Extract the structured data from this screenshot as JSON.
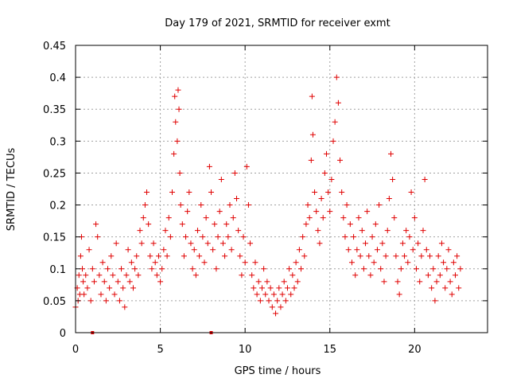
{
  "chart_data": {
    "type": "scatter",
    "title": "Day 179 of 2021, SRMTID for receiver exmt",
    "xlabel": "GPS time / hours",
    "ylabel": "SRMTID / TECUs",
    "xlim": [
      0,
      24.3
    ],
    "ylim": [
      0,
      0.45
    ],
    "xticks": [
      0,
      5,
      10,
      15,
      20
    ],
    "xtick_labels": [
      "0",
      "5",
      "10",
      "15",
      "20"
    ],
    "yticks": [
      0,
      0.05,
      0.1,
      0.15,
      0.2,
      0.25,
      0.3,
      0.35,
      0.4,
      0.45
    ],
    "ytick_labels": [
      "0",
      "0.05",
      "0.1",
      "0.15",
      "0.2",
      "0.25",
      "0.3",
      "0.35",
      "0.4",
      "0.45"
    ],
    "grid": true,
    "marker": "plus",
    "color": "#e00000",
    "gap_markers": [
      {
        "x": 1.0,
        "y": 0
      },
      {
        "x": 8.0,
        "y": 0
      }
    ],
    "series": [
      {
        "name": "SRMTID",
        "points": [
          [
            0.0,
            0.04
          ],
          [
            0.1,
            0.07
          ],
          [
            0.15,
            0.05
          ],
          [
            0.2,
            0.09
          ],
          [
            0.25,
            0.06
          ],
          [
            0.3,
            0.12
          ],
          [
            0.35,
            0.15
          ],
          [
            0.4,
            0.1
          ],
          [
            0.45,
            0.08
          ],
          [
            0.5,
            0.06
          ],
          [
            0.6,
            0.09
          ],
          [
            0.7,
            0.07
          ],
          [
            0.8,
            0.13
          ],
          [
            0.9,
            0.05
          ],
          [
            1.0,
            0.1
          ],
          [
            1.1,
            0.08
          ],
          [
            1.2,
            0.17
          ],
          [
            1.3,
            0.15
          ],
          [
            1.4,
            0.09
          ],
          [
            1.5,
            0.06
          ],
          [
            1.6,
            0.11
          ],
          [
            1.7,
            0.08
          ],
          [
            1.8,
            0.05
          ],
          [
            1.9,
            0.1
          ],
          [
            2.0,
            0.07
          ],
          [
            2.1,
            0.12
          ],
          [
            2.2,
            0.09
          ],
          [
            2.3,
            0.06
          ],
          [
            2.4,
            0.14
          ],
          [
            2.5,
            0.08
          ],
          [
            2.6,
            0.05
          ],
          [
            2.7,
            0.1
          ],
          [
            2.8,
            0.07
          ],
          [
            2.9,
            0.04
          ],
          [
            3.0,
            0.09
          ],
          [
            3.1,
            0.13
          ],
          [
            3.2,
            0.08
          ],
          [
            3.3,
            0.11
          ],
          [
            3.4,
            0.07
          ],
          [
            3.5,
            0.1
          ],
          [
            3.6,
            0.12
          ],
          [
            3.7,
            0.09
          ],
          [
            3.8,
            0.16
          ],
          [
            3.9,
            0.14
          ],
          [
            4.0,
            0.18
          ],
          [
            4.1,
            0.2
          ],
          [
            4.2,
            0.22
          ],
          [
            4.3,
            0.17
          ],
          [
            4.4,
            0.12
          ],
          [
            4.5,
            0.1
          ],
          [
            4.6,
            0.14
          ],
          [
            4.7,
            0.11
          ],
          [
            4.8,
            0.09
          ],
          [
            4.9,
            0.12
          ],
          [
            5.0,
            0.08
          ],
          [
            5.1,
            0.1
          ],
          [
            5.2,
            0.13
          ],
          [
            5.3,
            0.16
          ],
          [
            5.4,
            0.12
          ],
          [
            5.5,
            0.18
          ],
          [
            5.6,
            0.15
          ],
          [
            5.7,
            0.22
          ],
          [
            5.8,
            0.28
          ],
          [
            5.85,
            0.37
          ],
          [
            5.9,
            0.33
          ],
          [
            6.0,
            0.3
          ],
          [
            6.05,
            0.38
          ],
          [
            6.1,
            0.35
          ],
          [
            6.15,
            0.25
          ],
          [
            6.2,
            0.2
          ],
          [
            6.3,
            0.17
          ],
          [
            6.4,
            0.12
          ],
          [
            6.5,
            0.15
          ],
          [
            6.6,
            0.19
          ],
          [
            6.7,
            0.22
          ],
          [
            6.8,
            0.14
          ],
          [
            6.9,
            0.1
          ],
          [
            7.0,
            0.13
          ],
          [
            7.1,
            0.09
          ],
          [
            7.2,
            0.16
          ],
          [
            7.3,
            0.12
          ],
          [
            7.4,
            0.2
          ],
          [
            7.5,
            0.15
          ],
          [
            7.6,
            0.11
          ],
          [
            7.7,
            0.18
          ],
          [
            7.8,
            0.14
          ],
          [
            7.9,
            0.26
          ],
          [
            8.0,
            0.22
          ],
          [
            8.1,
            0.13
          ],
          [
            8.2,
            0.17
          ],
          [
            8.3,
            0.1
          ],
          [
            8.4,
            0.15
          ],
          [
            8.5,
            0.19
          ],
          [
            8.6,
            0.24
          ],
          [
            8.7,
            0.14
          ],
          [
            8.8,
            0.12
          ],
          [
            8.9,
            0.17
          ],
          [
            9.0,
            0.15
          ],
          [
            9.1,
            0.2
          ],
          [
            9.2,
            0.13
          ],
          [
            9.3,
            0.18
          ],
          [
            9.4,
            0.25
          ],
          [
            9.5,
            0.21
          ],
          [
            9.6,
            0.16
          ],
          [
            9.7,
            0.12
          ],
          [
            9.8,
            0.09
          ],
          [
            9.9,
            0.15
          ],
          [
            10.0,
            0.11
          ],
          [
            10.1,
            0.26
          ],
          [
            10.2,
            0.2
          ],
          [
            10.3,
            0.14
          ],
          [
            10.4,
            0.09
          ],
          [
            10.5,
            0.07
          ],
          [
            10.6,
            0.11
          ],
          [
            10.7,
            0.06
          ],
          [
            10.8,
            0.08
          ],
          [
            10.9,
            0.05
          ],
          [
            11.0,
            0.07
          ],
          [
            11.1,
            0.1
          ],
          [
            11.2,
            0.06
          ],
          [
            11.3,
            0.08
          ],
          [
            11.4,
            0.05
          ],
          [
            11.5,
            0.07
          ],
          [
            11.6,
            0.04
          ],
          [
            11.7,
            0.06
          ],
          [
            11.8,
            0.03
          ],
          [
            11.9,
            0.05
          ],
          [
            12.0,
            0.07
          ],
          [
            12.1,
            0.04
          ],
          [
            12.2,
            0.06
          ],
          [
            12.3,
            0.08
          ],
          [
            12.4,
            0.05
          ],
          [
            12.5,
            0.07
          ],
          [
            12.6,
            0.1
          ],
          [
            12.7,
            0.06
          ],
          [
            12.8,
            0.09
          ],
          [
            12.9,
            0.07
          ],
          [
            13.0,
            0.11
          ],
          [
            13.1,
            0.08
          ],
          [
            13.2,
            0.13
          ],
          [
            13.3,
            0.1
          ],
          [
            13.4,
            0.15
          ],
          [
            13.5,
            0.12
          ],
          [
            13.6,
            0.17
          ],
          [
            13.7,
            0.2
          ],
          [
            13.8,
            0.18
          ],
          [
            13.9,
            0.27
          ],
          [
            13.95,
            0.37
          ],
          [
            14.0,
            0.31
          ],
          [
            14.1,
            0.22
          ],
          [
            14.2,
            0.19
          ],
          [
            14.3,
            0.16
          ],
          [
            14.4,
            0.14
          ],
          [
            14.5,
            0.21
          ],
          [
            14.6,
            0.18
          ],
          [
            14.7,
            0.25
          ],
          [
            14.8,
            0.28
          ],
          [
            14.9,
            0.22
          ],
          [
            15.0,
            0.19
          ],
          [
            15.1,
            0.24
          ],
          [
            15.2,
            0.3
          ],
          [
            15.3,
            0.33
          ],
          [
            15.4,
            0.4
          ],
          [
            15.5,
            0.36
          ],
          [
            15.6,
            0.27
          ],
          [
            15.7,
            0.22
          ],
          [
            15.8,
            0.18
          ],
          [
            15.9,
            0.15
          ],
          [
            16.0,
            0.2
          ],
          [
            16.1,
            0.13
          ],
          [
            16.2,
            0.17
          ],
          [
            16.3,
            0.11
          ],
          [
            16.4,
            0.15
          ],
          [
            16.5,
            0.09
          ],
          [
            16.6,
            0.13
          ],
          [
            16.7,
            0.18
          ],
          [
            16.8,
            0.12
          ],
          [
            16.9,
            0.16
          ],
          [
            17.0,
            0.1
          ],
          [
            17.1,
            0.14
          ],
          [
            17.2,
            0.19
          ],
          [
            17.3,
            0.12
          ],
          [
            17.4,
            0.09
          ],
          [
            17.5,
            0.15
          ],
          [
            17.6,
            0.11
          ],
          [
            17.7,
            0.17
          ],
          [
            17.8,
            0.13
          ],
          [
            17.9,
            0.2
          ],
          [
            18.0,
            0.1
          ],
          [
            18.1,
            0.14
          ],
          [
            18.2,
            0.08
          ],
          [
            18.3,
            0.12
          ],
          [
            18.4,
            0.16
          ],
          [
            18.5,
            0.21
          ],
          [
            18.6,
            0.28
          ],
          [
            18.7,
            0.24
          ],
          [
            18.8,
            0.18
          ],
          [
            18.9,
            0.12
          ],
          [
            19.0,
            0.08
          ],
          [
            19.1,
            0.06
          ],
          [
            19.2,
            0.1
          ],
          [
            19.3,
            0.14
          ],
          [
            19.4,
            0.12
          ],
          [
            19.5,
            0.16
          ],
          [
            19.6,
            0.11
          ],
          [
            19.7,
            0.15
          ],
          [
            19.8,
            0.22
          ],
          [
            19.9,
            0.13
          ],
          [
            20.0,
            0.18
          ],
          [
            20.1,
            0.1
          ],
          [
            20.2,
            0.14
          ],
          [
            20.3,
            0.08
          ],
          [
            20.4,
            0.12
          ],
          [
            20.5,
            0.16
          ],
          [
            20.6,
            0.24
          ],
          [
            20.7,
            0.13
          ],
          [
            20.8,
            0.09
          ],
          [
            20.9,
            0.12
          ],
          [
            21.0,
            0.07
          ],
          [
            21.1,
            0.1
          ],
          [
            21.2,
            0.05
          ],
          [
            21.3,
            0.08
          ],
          [
            21.4,
            0.12
          ],
          [
            21.5,
            0.09
          ],
          [
            21.6,
            0.14
          ],
          [
            21.7,
            0.11
          ],
          [
            21.8,
            0.07
          ],
          [
            21.9,
            0.1
          ],
          [
            22.0,
            0.13
          ],
          [
            22.1,
            0.08
          ],
          [
            22.2,
            0.06
          ],
          [
            22.3,
            0.11
          ],
          [
            22.4,
            0.09
          ],
          [
            22.5,
            0.12
          ],
          [
            22.6,
            0.07
          ],
          [
            22.7,
            0.1
          ]
        ]
      }
    ]
  }
}
